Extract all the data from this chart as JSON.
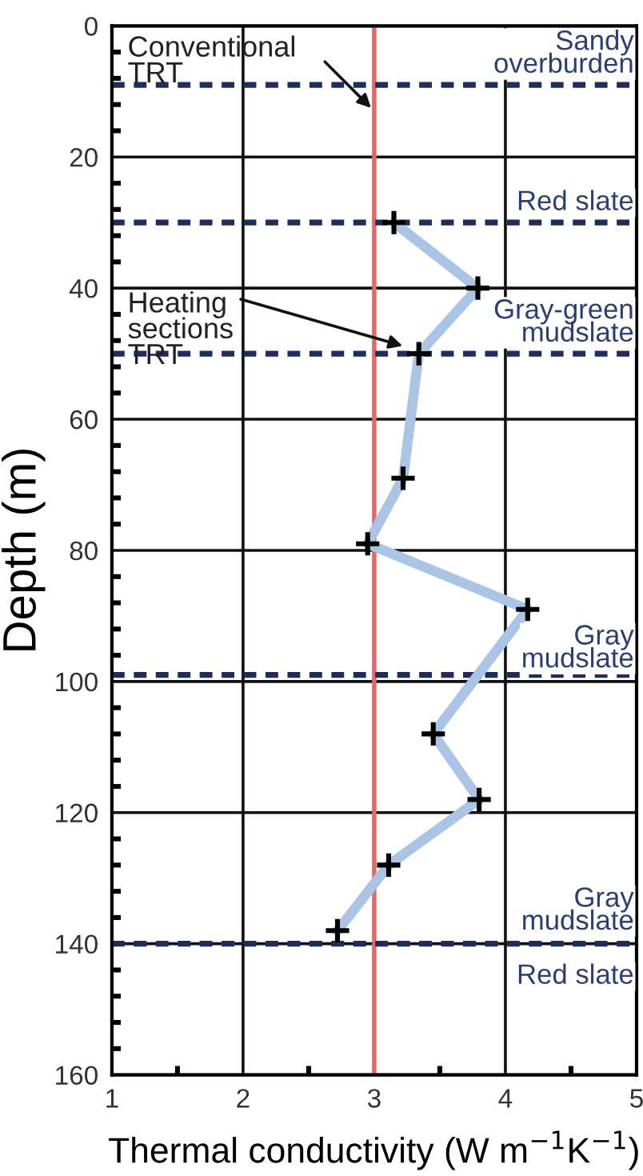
{
  "chart_data": {
    "type": "line",
    "xlabel": "Thermal conductivity (W m$^{−1}$K$^{−1}$)",
    "ylabel": "Depth (m)",
    "xlim": [
      1,
      5
    ],
    "xticks": [
      1,
      2,
      3,
      4,
      5
    ],
    "ylim": [
      160,
      0
    ],
    "yticks": [
      0,
      20,
      40,
      60,
      80,
      100,
      120,
      140,
      160
    ],
    "grid": true,
    "legend": false,
    "series": [
      {
        "color": "#a9c4e4",
        "marker": "none",
        "x": [
          3.15,
          3.79,
          3.34,
          3.22,
          2.95,
          4.17,
          3.45,
          3.8,
          3.11,
          2.72
        ],
        "values": [
          30,
          40,
          50,
          69,
          79,
          89,
          108,
          118,
          128,
          138
        ]
      },
      {
        "type": "scatter",
        "color": "#000000",
        "marker": "cross",
        "x": [
          3.15,
          3.79,
          3.34,
          3.22,
          2.95,
          4.17,
          3.45,
          3.8,
          3.11,
          2.72
        ],
        "values": [
          30,
          40,
          50,
          69,
          79,
          89,
          108,
          118,
          128,
          138
        ]
      }
    ],
    "ref_lines": [
      {
        "axis": "x",
        "value": 3,
        "color": "#e06a6a",
        "line_style": "solid"
      },
      {
        "axis": "y",
        "value": 9,
        "color": "#1c2e5e",
        "line_style": "dashed"
      },
      {
        "axis": "y",
        "value": 30,
        "color": "#1c2e5e",
        "line_style": "dashed"
      },
      {
        "axis": "y",
        "value": 50,
        "color": "#1c2e5e",
        "line_style": "dashed"
      },
      {
        "axis": "y",
        "value": 99,
        "color": "#1c2e5e",
        "line_style": "dashed"
      },
      {
        "axis": "y",
        "value": 140,
        "color": "#1c2e5e",
        "line_style": "dashed"
      }
    ],
    "annotations": [
      {
        "text": "Conventional\nTRT",
        "x": 3,
        "y": 13
      },
      {
        "text": "Heating\nsections\nTRT",
        "x": 3.25,
        "y": 49
      },
      "Sandy\noverburden",
      "Red slate",
      "Gray-green\nmudslate",
      "Gray\nmudslate",
      "Gray\nmudslate",
      "Red slate"
    ]
  }
}
